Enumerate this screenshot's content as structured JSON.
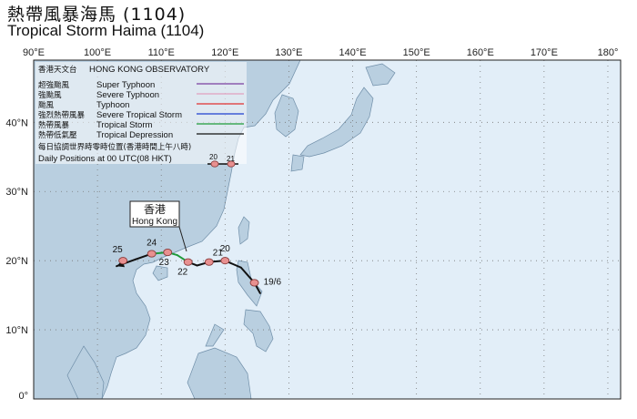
{
  "title_zh": "熱帶風暴海馬 (1104)",
  "title_en": "Tropical Storm Haima (1104)",
  "axes": {
    "lon_ticks": [
      "90°E",
      "100°E",
      "110°E",
      "120°E",
      "130°E",
      "140°E",
      "150°E",
      "160°E",
      "170°E",
      "180°"
    ],
    "lon_values": [
      90,
      100,
      110,
      120,
      130,
      140,
      150,
      160,
      170,
      180
    ],
    "lat_ticks": [
      "40°N",
      "30°N",
      "20°N",
      "10°N",
      "0°"
    ],
    "lat_values": [
      40,
      30,
      20,
      10,
      0
    ]
  },
  "legend": {
    "header_zh": "香港天文台",
    "header_en": "HONG KONG OBSERVATORY",
    "items": [
      {
        "zh": "超強颱風",
        "en": "Super Typhoon",
        "color": "#7b3fa0"
      },
      {
        "zh": "強颱風",
        "en": "Severe Typhoon",
        "color": "#e0a0c0"
      },
      {
        "zh": "颱風",
        "en": "Typhoon",
        "color": "#e03030"
      },
      {
        "zh": "強烈熱帶風暴",
        "en": "Severe Tropical Storm",
        "color": "#1f3fd0"
      },
      {
        "zh": "熱帶風暴",
        "en": "Tropical Storm",
        "color": "#1f9a3a"
      },
      {
        "zh": "熱帶低氣壓",
        "en": "Tropical Depression",
        "color": "#111111"
      }
    ],
    "daily_zh": "每日協調世界時零時位置(香港時間上午八時)",
    "daily_en": "Daily Positions at 00 UTC(08 HKT)",
    "sample_labels": [
      "20",
      "21"
    ]
  },
  "hong_kong": {
    "zh": "香港",
    "en": "Hong Kong"
  },
  "colors": {
    "sea": "#e2eef8",
    "land": "#b9cfe0",
    "coast": "#6f8ea8",
    "grid": "#777777",
    "marker_fill": "#e89090",
    "marker_stroke": "#8a3b3b"
  },
  "track": {
    "points": [
      {
        "lon": 125.5,
        "lat": 15.3,
        "stage": "TD"
      },
      {
        "lon": 124.6,
        "lat": 16.8,
        "stage": "TD"
      },
      {
        "lon": 122.5,
        "lat": 19.0,
        "stage": "TD"
      },
      {
        "lon": 120.0,
        "lat": 20.0,
        "stage": "TD"
      },
      {
        "lon": 117.5,
        "lat": 19.8,
        "stage": "TD"
      },
      {
        "lon": 115.6,
        "lat": 19.3,
        "stage": "TD"
      },
      {
        "lon": 114.2,
        "lat": 19.8,
        "stage": "TD"
      },
      {
        "lon": 112.5,
        "lat": 20.8,
        "stage": "TS"
      },
      {
        "lon": 111.0,
        "lat": 21.2,
        "stage": "TS"
      },
      {
        "lon": 108.5,
        "lat": 21.0,
        "stage": "TS"
      },
      {
        "lon": 106.0,
        "lat": 20.2,
        "stage": "TD"
      },
      {
        "lon": 103.0,
        "lat": 19.2,
        "stage": "TD"
      }
    ],
    "daily_positions": [
      {
        "label": "19/6",
        "lon": 124.6,
        "lat": 16.8
      },
      {
        "label": "20",
        "lon": 120.0,
        "lat": 20.0
      },
      {
        "label": "21",
        "lon": 117.5,
        "lat": 19.8
      },
      {
        "label": "22",
        "lon": 114.2,
        "lat": 19.8
      },
      {
        "label": "23",
        "lon": 111.0,
        "lat": 21.2
      },
      {
        "label": "24",
        "lon": 108.5,
        "lat": 21.0
      },
      {
        "label": "25",
        "lon": 104.0,
        "lat": 20.0
      }
    ]
  }
}
